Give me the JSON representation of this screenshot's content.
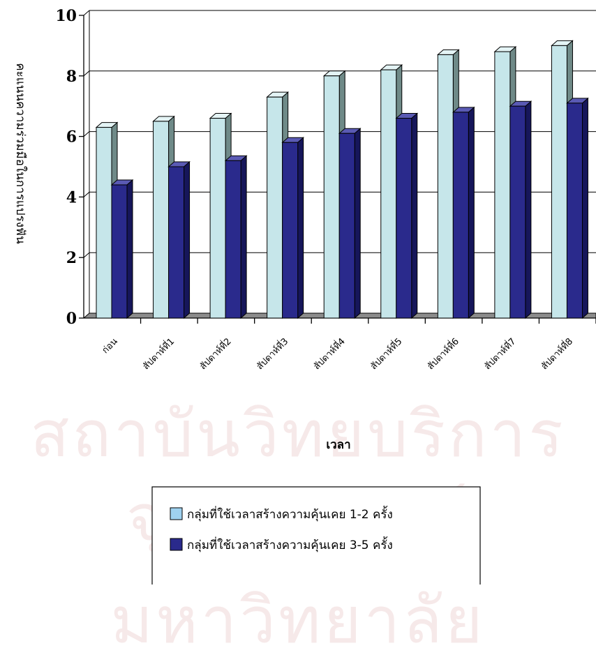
{
  "chart_data": {
    "type": "bar",
    "categories": [
      "ก่อน",
      "สัปดาห์ที่1",
      "สัปดาห์ที่2",
      "สัปดาห์ที่3",
      "สัปดาห์ที่4",
      "สัปดาห์ที่5",
      "สัปดาห์ที่6",
      "สัปดาห์ที่7",
      "สัปดาห์ที่8"
    ],
    "series": [
      {
        "name": "กลุ่มที่ใช้เวลาสร้างความคุ้นเคย 1-2 ครั้ง",
        "color": "#c6e6ea",
        "values": [
          6.3,
          6.5,
          6.6,
          7.3,
          8.0,
          8.2,
          8.7,
          8.8,
          9.0
        ]
      },
      {
        "name": "กลุ่มที่ใช้เวลาสร้างความคุ้นเคย 3-5 ครั้ง",
        "color": "#2a2a8c",
        "values": [
          4.4,
          5.0,
          5.2,
          5.8,
          6.1,
          6.6,
          6.8,
          7.0,
          7.1
        ]
      }
    ],
    "xlabel": "เวลา",
    "ylabel": "คะแนนความร่วมมือในการแปรงฟัน",
    "ylim": [
      0,
      10
    ],
    "yticks": [
      0,
      2,
      4,
      6,
      8,
      10
    ],
    "grid": true,
    "legend_position": "bottom"
  },
  "watermark": {
    "line1": "สถาบันวิทยบริการ",
    "line2": "จุฬาลงกรณ์มหาวิทยาลัย"
  }
}
